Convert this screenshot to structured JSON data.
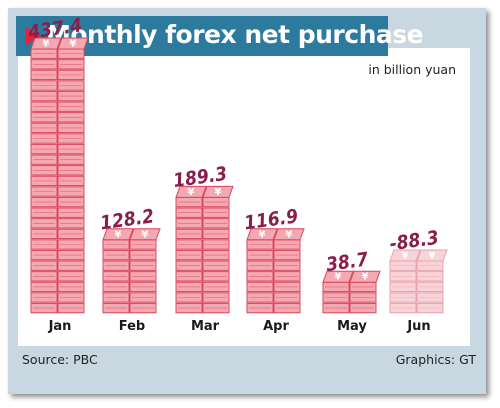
{
  "title": "Monthly forex net purchase",
  "unit": "in billion yuan",
  "source": "Source: PBC",
  "credit": "Graphics: GT",
  "colors": {
    "background_panel": "#c9d8e0",
    "title_bar": "#2d7a9f",
    "accent_triangle": "#e8213a",
    "bill_face": "#f3a8b2",
    "bill_edge": "#d9475e",
    "bill_symbol": "#ffffff",
    "negative_face": "#f8d3d8",
    "value_label": "#8a1e4a"
  },
  "chart_data": {
    "type": "bar",
    "title": "Monthly forex net purchase",
    "ylabel": "in billion yuan",
    "categories": [
      "Jan",
      "Feb",
      "Mar",
      "Apr",
      "May",
      "Jun"
    ],
    "values": [
      437.4,
      128.2,
      189.3,
      116.9,
      38.7,
      -88.3
    ],
    "value_labels": [
      "437.4",
      "128.2",
      "189.3",
      "116.9",
      "38.7",
      "-88.3"
    ],
    "stack_layers": [
      25,
      7,
      11,
      7,
      3,
      5
    ],
    "negative_style": "faded",
    "grid": false
  }
}
